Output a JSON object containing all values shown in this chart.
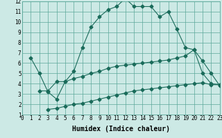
{
  "title": "",
  "xlabel": "Humidex (Indice chaleur)",
  "background_color": "#cce9e5",
  "grid_color": "#5ba89a",
  "line_color": "#1a6b5a",
  "line1_x": [
    1,
    2,
    3,
    4,
    5,
    6,
    7,
    8,
    9,
    10,
    11,
    12,
    13,
    14,
    15,
    16,
    17,
    18,
    19,
    20,
    21,
    22,
    23
  ],
  "line1_y": [
    6.5,
    5.0,
    3.2,
    2.5,
    4.2,
    5.2,
    7.5,
    9.5,
    10.5,
    11.2,
    11.5,
    12.3,
    11.5,
    11.5,
    11.5,
    10.5,
    11.0,
    9.3,
    7.5,
    7.3,
    6.2,
    5.0,
    3.8
  ],
  "line2_x": [
    2,
    3,
    4,
    5,
    6,
    7,
    8,
    9,
    10,
    11,
    12,
    13,
    14,
    15,
    16,
    17,
    18,
    19,
    20,
    21,
    22,
    23
  ],
  "line2_y": [
    3.3,
    3.3,
    4.2,
    4.2,
    4.5,
    4.7,
    5.0,
    5.2,
    5.5,
    5.7,
    5.8,
    5.9,
    6.0,
    6.1,
    6.2,
    6.3,
    6.5,
    6.7,
    7.3,
    5.0,
    4.0,
    3.9
  ],
  "line3_x": [
    3,
    4,
    5,
    6,
    7,
    8,
    9,
    10,
    11,
    12,
    13,
    14,
    15,
    16,
    17,
    18,
    19,
    20,
    21,
    22,
    23
  ],
  "line3_y": [
    1.5,
    1.6,
    1.8,
    2.0,
    2.1,
    2.3,
    2.5,
    2.7,
    2.9,
    3.1,
    3.3,
    3.4,
    3.5,
    3.6,
    3.7,
    3.8,
    3.9,
    4.0,
    4.1,
    3.9,
    3.9
  ],
  "xlim": [
    0,
    23
  ],
  "ylim": [
    1,
    12
  ],
  "xticks": [
    0,
    1,
    2,
    3,
    4,
    5,
    6,
    7,
    8,
    9,
    10,
    11,
    12,
    13,
    14,
    15,
    16,
    17,
    18,
    19,
    20,
    21,
    22,
    23
  ],
  "yticks": [
    1,
    2,
    3,
    4,
    5,
    6,
    7,
    8,
    9,
    10,
    11,
    12
  ],
  "tick_fontsize": 5.5,
  "xlabel_fontsize": 7.0
}
